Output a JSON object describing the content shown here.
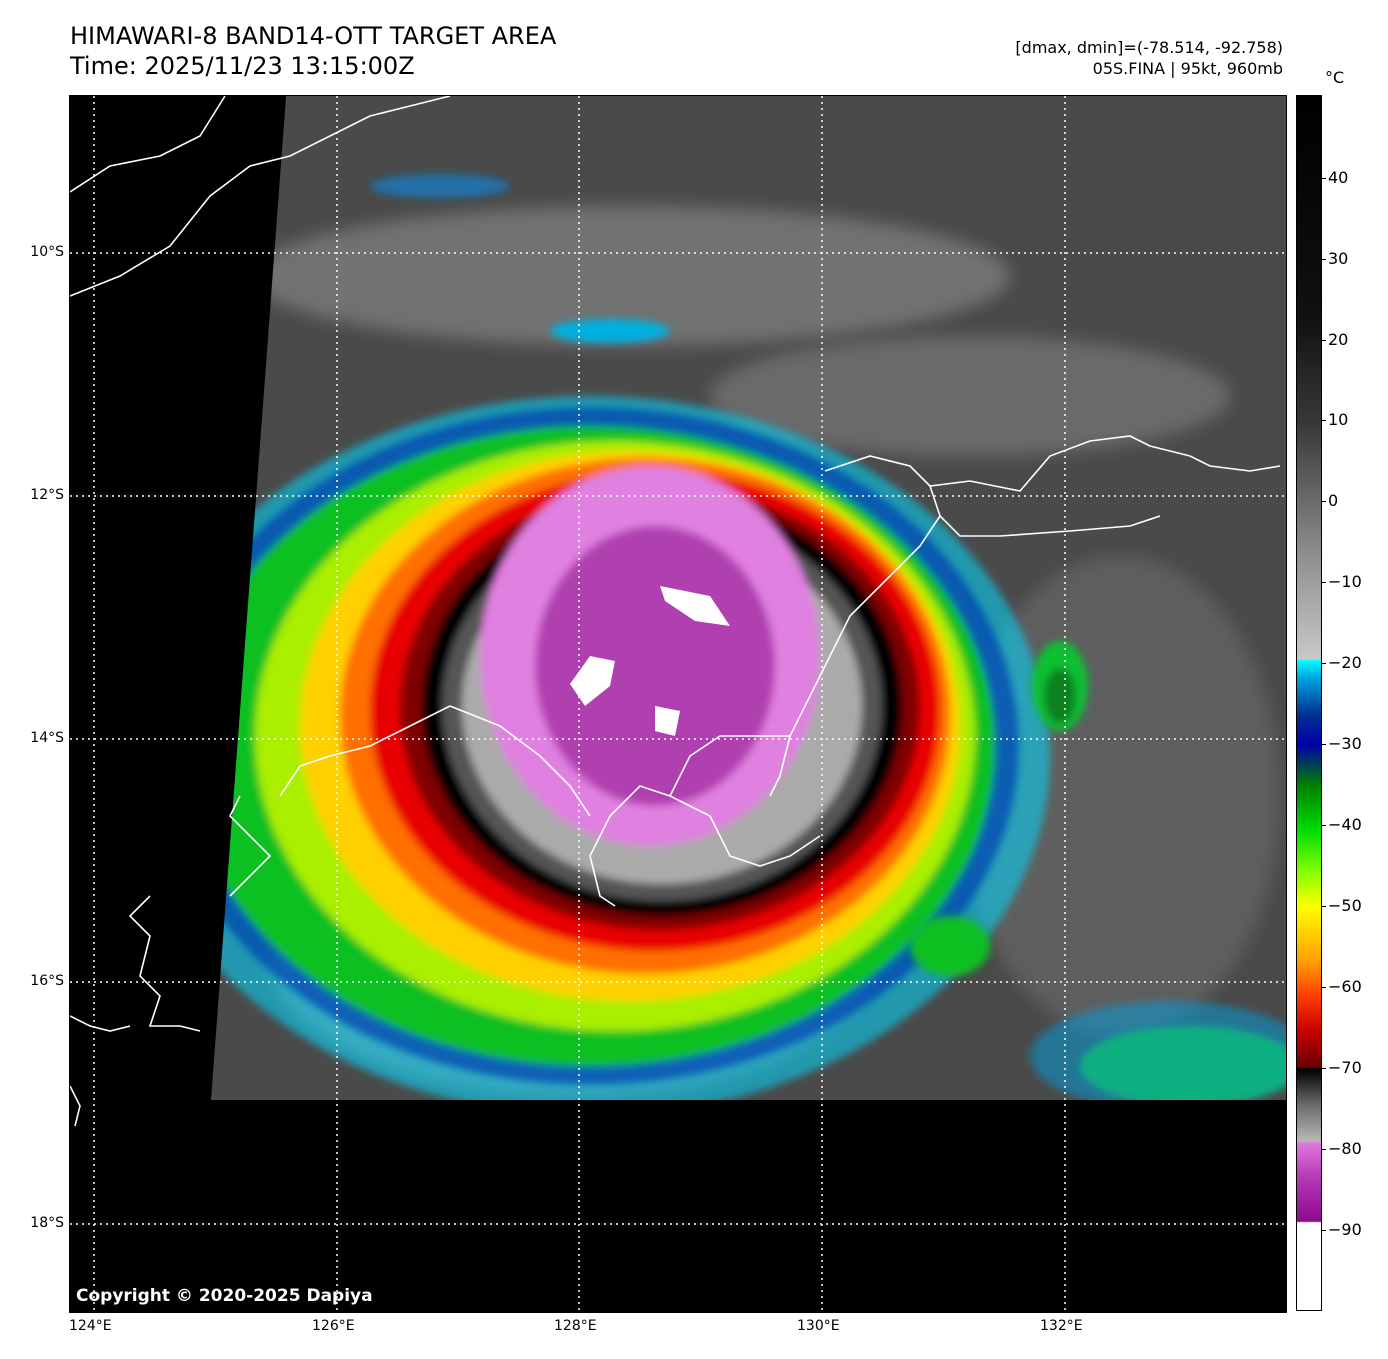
{
  "title_line1": "HIMAWARI-8 BAND14-OTT TARGET AREA",
  "title_line2": "Time: 2025/11/23 13:15:00Z",
  "meta_line1": "[dmax, dmin]=(-78.514, -92.758)",
  "meta_line2": "05S.FINA | 95kt, 960mb",
  "copyright": "Copyright © 2020-2025 Dapiya",
  "lat_labels": [
    "10°S",
    "12°S",
    "14°S",
    "16°S",
    "18°S"
  ],
  "lon_labels": [
    "124°E",
    "126°E",
    "128°E",
    "130°E",
    "132°E"
  ],
  "colorbar": {
    "unit": "°C",
    "labels": [
      "40",
      "30",
      "20",
      "10",
      "0",
      "−10",
      "−20",
      "−30",
      "−40",
      "−50",
      "−60",
      "−70",
      "−80",
      "−90"
    ]
  }
}
